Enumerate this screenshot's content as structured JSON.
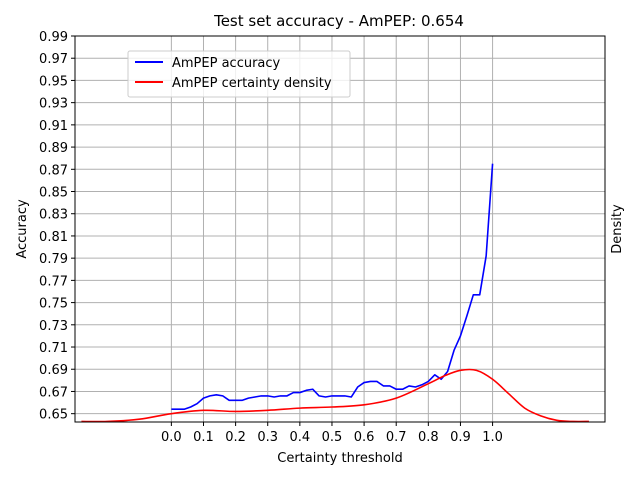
{
  "chart_data": {
    "type": "line",
    "title": "Test set accuracy - AmPEP: 0.654",
    "xlabel": "Certainty threshold",
    "ylabel": "Accuracy",
    "y2label": "Density",
    "xlim": [
      -0.3,
      1.35
    ],
    "ylim": [
      0.6425,
      0.99
    ],
    "x_ticks": [
      "0.0",
      "0.1",
      "0.2",
      "0.3",
      "0.4",
      "0.5",
      "0.6",
      "0.7",
      "0.8",
      "0.9",
      "1.0"
    ],
    "y_ticks": [
      "0.65",
      "0.67",
      "0.69",
      "0.71",
      "0.73",
      "0.75",
      "0.77",
      "0.79",
      "0.81",
      "0.83",
      "0.85",
      "0.87",
      "0.89",
      "0.91",
      "0.93",
      "0.95",
      "0.97",
      "0.99"
    ],
    "grid": true,
    "legend_position": "upper-left",
    "series": [
      {
        "name": "AmPEP accuracy",
        "color": "#0000ff",
        "x": [
          0.0,
          0.02,
          0.04,
          0.06,
          0.08,
          0.1,
          0.12,
          0.14,
          0.16,
          0.18,
          0.2,
          0.22,
          0.24,
          0.26,
          0.28,
          0.3,
          0.32,
          0.34,
          0.36,
          0.38,
          0.4,
          0.42,
          0.44,
          0.46,
          0.48,
          0.5,
          0.52,
          0.54,
          0.56,
          0.58,
          0.6,
          0.62,
          0.64,
          0.66,
          0.68,
          0.7,
          0.72,
          0.74,
          0.76,
          0.78,
          0.8,
          0.82,
          0.84,
          0.86,
          0.88,
          0.9,
          0.92,
          0.94,
          0.96,
          0.98,
          1.0
        ],
        "y": [
          0.654,
          0.654,
          0.654,
          0.656,
          0.659,
          0.664,
          0.666,
          0.667,
          0.666,
          0.662,
          0.662,
          0.662,
          0.664,
          0.665,
          0.666,
          0.666,
          0.665,
          0.666,
          0.666,
          0.669,
          0.669,
          0.671,
          0.672,
          0.666,
          0.665,
          0.666,
          0.666,
          0.666,
          0.665,
          0.674,
          0.678,
          0.679,
          0.679,
          0.675,
          0.675,
          0.672,
          0.672,
          0.675,
          0.674,
          0.676,
          0.679,
          0.685,
          0.681,
          0.688,
          0.707,
          0.72,
          0.738,
          0.757,
          0.757,
          0.792,
          0.875
        ]
      },
      {
        "name": "AmPEP certainty density",
        "color": "#ff0000",
        "x": [
          -0.28,
          -0.2,
          -0.1,
          0.0,
          0.1,
          0.2,
          0.3,
          0.4,
          0.5,
          0.6,
          0.7,
          0.8,
          0.85,
          0.9,
          0.95,
          1.0,
          1.05,
          1.1,
          1.15,
          1.2,
          1.25,
          1.3
        ],
        "y": [
          0.643,
          0.643,
          0.645,
          0.65,
          0.653,
          0.652,
          0.653,
          0.655,
          0.656,
          0.658,
          0.664,
          0.677,
          0.684,
          0.689,
          0.689,
          0.681,
          0.668,
          0.655,
          0.648,
          0.644,
          0.643,
          0.643
        ]
      }
    ]
  }
}
